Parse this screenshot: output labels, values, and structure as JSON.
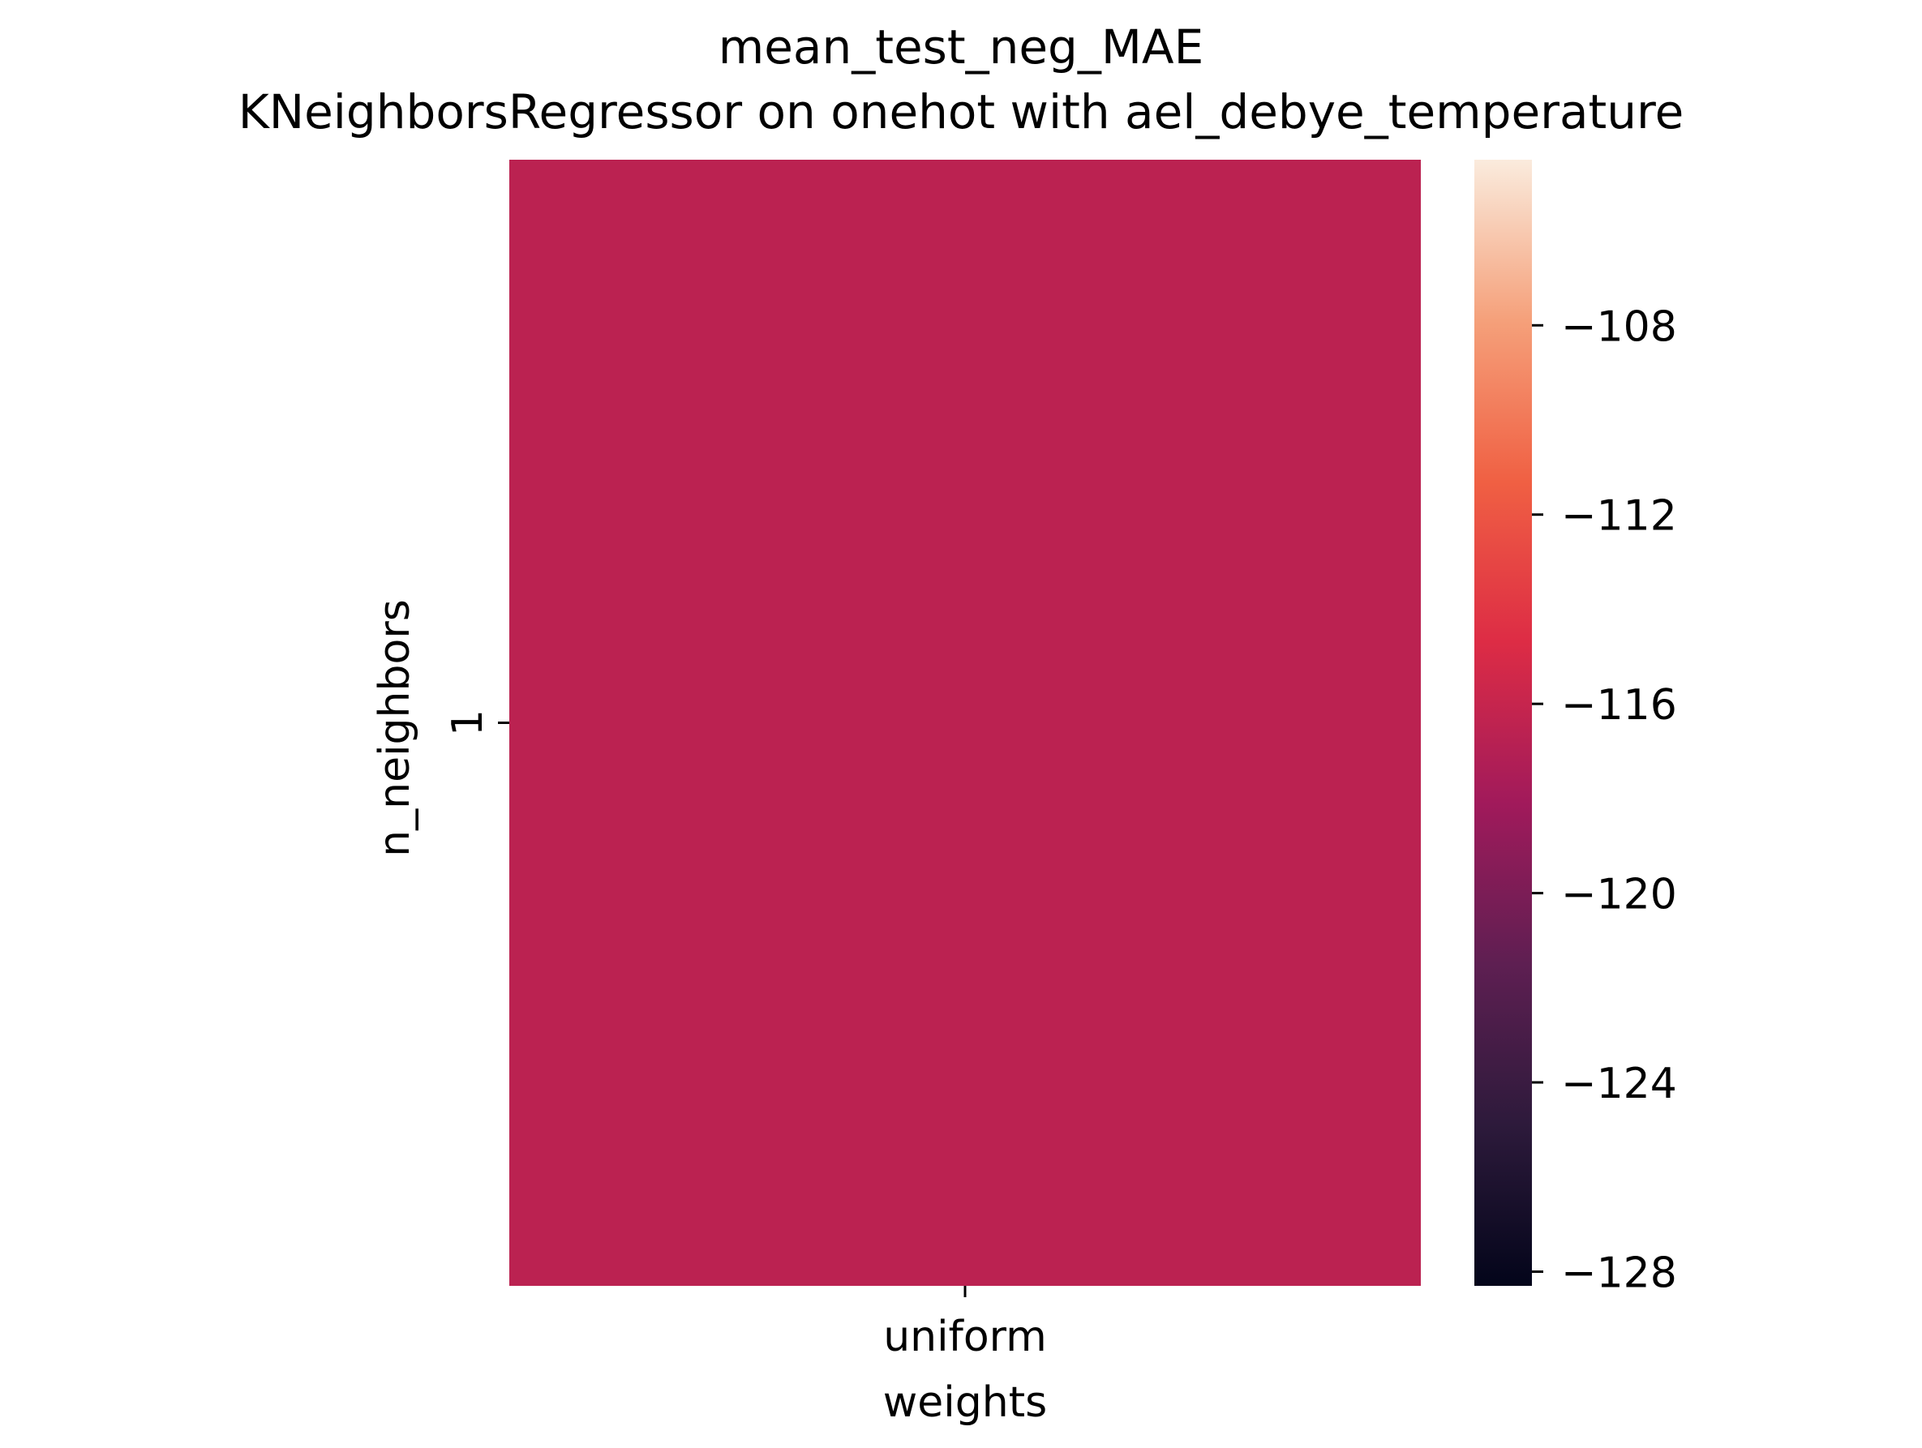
{
  "chart_data": {
    "type": "heatmap",
    "title": "mean_test_neg_MAE",
    "subtitle": "KNeighborsRegressor on onehot with ael_debye_temperature",
    "x_label": "weights",
    "y_label": "n_neighbors",
    "x_categories": [
      "uniform"
    ],
    "y_categories": [
      "1"
    ],
    "values": [
      [
        -116.6
      ]
    ],
    "colorbar": {
      "min": -128.3,
      "max": -104.5,
      "ticks": [
        -108,
        -112,
        -116,
        -120,
        -124,
        -128
      ],
      "tick_labels": [
        "−108",
        "−112",
        "−116",
        "−120",
        "−124",
        "−128"
      ],
      "colormap": "rocket",
      "stops": [
        "#03051a",
        "#2d1a3b",
        "#5e1f52",
        "#a11a5b",
        "#dd2c45",
        "#f06043",
        "#f5a07a",
        "#faebdd"
      ]
    },
    "grid": false
  }
}
